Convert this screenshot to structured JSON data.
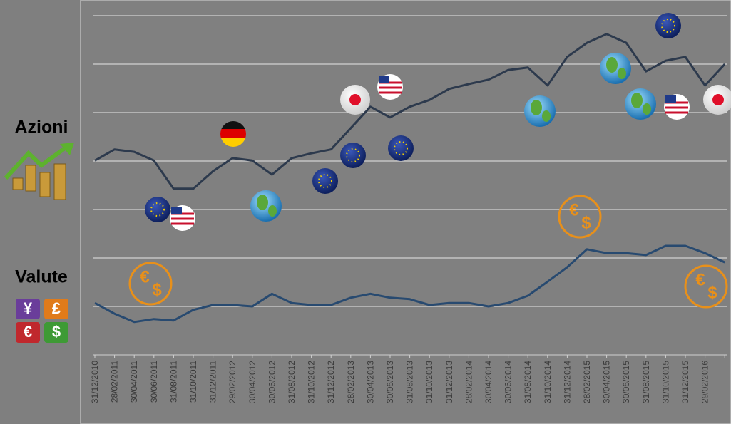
{
  "chart_data": {
    "type": "line",
    "categories": [
      "31/12/2010",
      "28/02/2011",
      "30/04/2011",
      "30/06/2011",
      "31/08/2011",
      "31/10/2011",
      "31/12/2011",
      "29/02/2012",
      "30/04/2012",
      "30/06/2012",
      "31/08/2012",
      "31/10/2012",
      "31/12/2012",
      "28/02/2013",
      "30/04/2013",
      "30/06/2013",
      "31/08/2013",
      "31/10/2013",
      "31/12/2013",
      "28/02/2014",
      "30/04/2014",
      "30/06/2014",
      "31/08/2014",
      "31/10/2014",
      "31/12/2014",
      "28/02/2015",
      "30/04/2015",
      "30/06/2015",
      "31/08/2015",
      "31/10/2015",
      "31/12/2015",
      "29/02/2016",
      null
    ],
    "series": [
      {
        "name": "Azioni",
        "color": "#2d3a4d",
        "values": [
          4.01,
          4.24,
          4.19,
          4.01,
          3.43,
          3.43,
          3.79,
          4.06,
          4.01,
          3.72,
          4.06,
          4.16,
          4.24,
          4.68,
          5.12,
          4.9,
          5.12,
          5.26,
          5.49,
          5.59,
          5.68,
          5.88,
          5.93,
          5.56,
          6.15,
          6.44,
          6.62,
          6.44,
          5.85,
          6.07,
          6.15,
          5.56,
          6.0
        ]
      },
      {
        "name": "Valute",
        "color": "#284a70",
        "values": [
          1.07,
          0.85,
          0.68,
          0.74,
          0.71,
          0.93,
          1.03,
          1.03,
          1.0,
          1.26,
          1.07,
          1.03,
          1.03,
          1.18,
          1.26,
          1.18,
          1.15,
          1.03,
          1.07,
          1.07,
          1.0,
          1.07,
          1.22,
          1.51,
          1.81,
          2.18,
          2.1,
          2.1,
          2.06,
          2.25,
          2.25,
          2.1,
          1.91
        ]
      }
    ],
    "ylim": [
      0,
      7
    ],
    "yticks": [
      1,
      2,
      3,
      4,
      5,
      6,
      7
    ],
    "grid": true
  },
  "currency_tiles": [
    "¥",
    "£",
    "€",
    "$"
  ]
}
